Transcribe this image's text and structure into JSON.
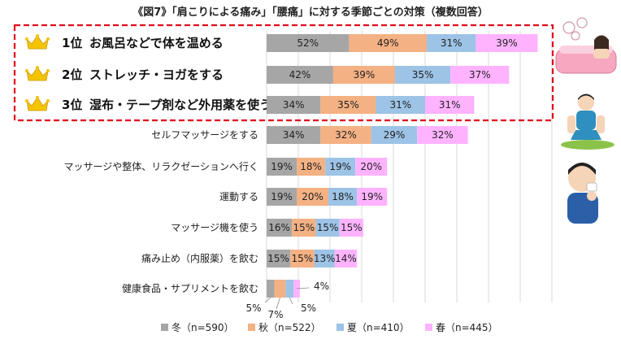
{
  "chart_data": {
    "type": "stacked-bar",
    "title": "《図7》「肩こりによる痛み」「腰痛」に対する季節ごとの対策（複数回答）",
    "rank_suffix": "位",
    "categories": [
      "お風呂などで体を温める",
      "ストレッチ・ヨガをする",
      "湿布・テープ剤など外用薬を使う",
      "セルフマッサージをする",
      "マッサージや整体、リラクゼーションへ行く",
      "運動する",
      "マッサージ機を使う",
      "痛み止め（内服薬）を飲む",
      "健康食品・サプリメントを飲む"
    ],
    "ranked_top": 3,
    "series": [
      {
        "name": "冬",
        "n_label": "冬（n=590）",
        "color": "#a6a6a6",
        "values": [
          52,
          42,
          34,
          34,
          19,
          19,
          16,
          15,
          5
        ]
      },
      {
        "name": "秋",
        "n_label": "秋（n=522）",
        "color": "#f4b183",
        "values": [
          49,
          39,
          35,
          32,
          18,
          20,
          15,
          15,
          7
        ]
      },
      {
        "name": "夏",
        "n_label": "夏（n=410）",
        "color": "#9dc3e6",
        "values": [
          31,
          35,
          31,
          29,
          19,
          18,
          15,
          13,
          5
        ]
      },
      {
        "name": "春",
        "n_label": "春（n=445）",
        "color": "#ffb3ff",
        "values": [
          39,
          37,
          31,
          32,
          20,
          19,
          15,
          14,
          4
        ]
      }
    ],
    "value_suffix": "%",
    "grid": true,
    "legend_position": "bottom"
  },
  "colors": {
    "highlight_border": "#e0001a",
    "crown": "#f5c400",
    "grid": "#d0d0d0"
  },
  "icons": [
    "crown-icon",
    "bath-illustration",
    "stretch-illustration",
    "back-pain-illustration"
  ]
}
